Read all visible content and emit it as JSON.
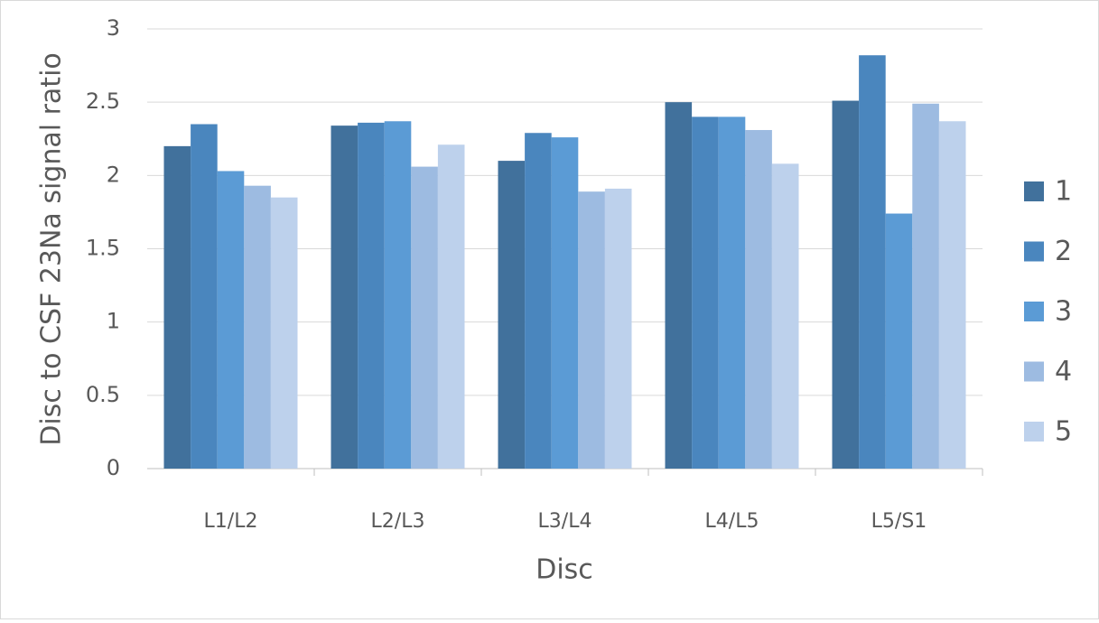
{
  "chart_data": {
    "type": "bar",
    "x_label": "Disc",
    "y_label": "Disc to CSF 23Na signal ratio",
    "categories": [
      "L1/L2",
      "L2/L3",
      "L3/L4",
      "L4/L5",
      "L5/S1"
    ],
    "series": [
      {
        "name": "1",
        "color": "#41719c",
        "values": [
          2.2,
          2.34,
          2.1,
          2.5,
          2.51
        ]
      },
      {
        "name": "2",
        "color": "#4a86be",
        "values": [
          2.35,
          2.36,
          2.29,
          2.4,
          2.82
        ]
      },
      {
        "name": "3",
        "color": "#5b9bd5",
        "values": [
          2.03,
          2.37,
          2.26,
          2.4,
          1.74
        ]
      },
      {
        "name": "4",
        "color": "#9dbbe1",
        "values": [
          1.93,
          2.06,
          1.89,
          2.31,
          2.49
        ]
      },
      {
        "name": "5",
        "color": "#bdd1ec",
        "values": [
          1.85,
          2.21,
          1.91,
          2.08,
          2.37
        ]
      }
    ],
    "ylim": [
      0,
      3
    ],
    "yticks": [
      0,
      0.5,
      1,
      1.5,
      2,
      2.5,
      3
    ],
    "grid": true,
    "legend": "right"
  }
}
